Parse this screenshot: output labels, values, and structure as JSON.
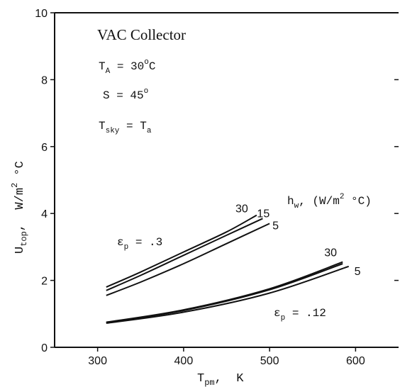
{
  "chart_data": {
    "type": "line",
    "xlabel": {
      "main": "T",
      "sub": "pm",
      "rest": ",  K"
    },
    "ylabel": {
      "main": "U",
      "sub": "top",
      "rest": ",  W/m",
      "sup": "2",
      "tail": " °C"
    },
    "xlim": [
      250,
      650
    ],
    "ylim": [
      0,
      10
    ],
    "xticks": [
      300,
      400,
      500,
      600
    ],
    "yticks": [
      0,
      2,
      4,
      6,
      8,
      10
    ],
    "annotations": {
      "title": "VAC Collector",
      "ta": {
        "main": "T",
        "sub": "A",
        "rest": " = 30",
        "sup": "o",
        "tail": "C"
      },
      "s": {
        "main": "S = 45",
        "sup": "o"
      },
      "tsky": {
        "main": "T",
        "sub": "sky",
        "mid": " = T",
        "sub2": "a"
      },
      "hw": {
        "main": "h",
        "sub": "w",
        "rest": ", (W/m",
        "sup": "2",
        "tail": " °C)"
      },
      "eps_high": {
        "main": "ε",
        "sub": "p",
        "rest": " = .3"
      },
      "eps_low": {
        "main": "ε",
        "sub": "p",
        "rest": " = .12"
      }
    },
    "series": [
      {
        "group": "eps=.3",
        "label": "30",
        "x": [
          310,
          350,
          400,
          450,
          485
        ],
        "y": [
          1.8,
          2.25,
          2.85,
          3.45,
          3.95
        ]
      },
      {
        "group": "eps=.3",
        "label": "15",
        "x": [
          310,
          350,
          400,
          450,
          492
        ],
        "y": [
          1.7,
          2.15,
          2.75,
          3.35,
          3.85
        ]
      },
      {
        "group": "eps=.3",
        "label": "5",
        "x": [
          310,
          350,
          400,
          450,
          500
        ],
        "y": [
          1.55,
          1.95,
          2.5,
          3.1,
          3.7
        ]
      },
      {
        "group": "eps=.12",
        "label": "30",
        "x": [
          310,
          400,
          500,
          585
        ],
        "y": [
          0.75,
          1.12,
          1.75,
          2.55
        ]
      },
      {
        "group": "eps=.12",
        "label": "",
        "x": [
          310,
          400,
          500,
          585
        ],
        "y": [
          0.74,
          1.1,
          1.72,
          2.5
        ]
      },
      {
        "group": "eps=.12",
        "label": "5",
        "x": [
          310,
          400,
          500,
          592
        ],
        "y": [
          0.72,
          1.05,
          1.62,
          2.42
        ]
      }
    ]
  }
}
